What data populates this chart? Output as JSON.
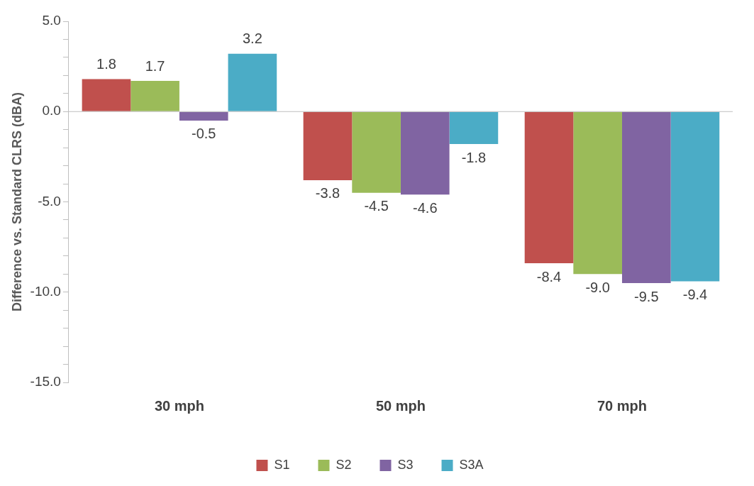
{
  "chart_data": {
    "type": "bar",
    "ylabel": "Difference vs. Standard CLRS (dBA)",
    "categories": [
      "30 mph",
      "50 mph",
      "70 mph"
    ],
    "series": [
      {
        "name": "S1",
        "color": "#c0504d",
        "values": [
          1.8,
          -3.8,
          -8.4
        ],
        "value_labels": [
          "1.8",
          "-3.8",
          "-8.4"
        ]
      },
      {
        "name": "S2",
        "color": "#9bbb59",
        "values": [
          1.7,
          -4.5,
          -9.0
        ],
        "value_labels": [
          "1.7",
          "-4.5",
          "-9.0"
        ]
      },
      {
        "name": "S3",
        "color": "#8064a2",
        "values": [
          -0.5,
          -4.6,
          -9.5
        ],
        "value_labels": [
          "-0.5",
          "-4.6",
          "-9.5"
        ]
      },
      {
        "name": "S3A",
        "color": "#4bacc6",
        "values": [
          3.2,
          -1.8,
          -9.4
        ],
        "value_labels": [
          "3.2",
          "-1.8",
          "-9.4"
        ]
      }
    ],
    "ylim": [
      -15,
      5
    ],
    "yticks": [
      {
        "value": -15,
        "label": "-15.0"
      },
      {
        "value": -14,
        "label": null
      },
      {
        "value": -13,
        "label": null
      },
      {
        "value": -12,
        "label": null
      },
      {
        "value": -11,
        "label": null
      },
      {
        "value": -10,
        "label": "-10.0"
      },
      {
        "value": -9,
        "label": null
      },
      {
        "value": -8,
        "label": null
      },
      {
        "value": -7,
        "label": null
      },
      {
        "value": -6,
        "label": null
      },
      {
        "value": -5,
        "label": "-5.0"
      },
      {
        "value": -4,
        "label": null
      },
      {
        "value": -3,
        "label": null
      },
      {
        "value": -2,
        "label": null
      },
      {
        "value": -1,
        "label": null
      },
      {
        "value": 0,
        "label": "0.0"
      },
      {
        "value": 1,
        "label": null
      },
      {
        "value": 2,
        "label": null
      },
      {
        "value": 3,
        "label": null
      },
      {
        "value": 4,
        "label": null
      },
      {
        "value": 5,
        "label": "5.0"
      }
    ],
    "legend": "bottom"
  }
}
